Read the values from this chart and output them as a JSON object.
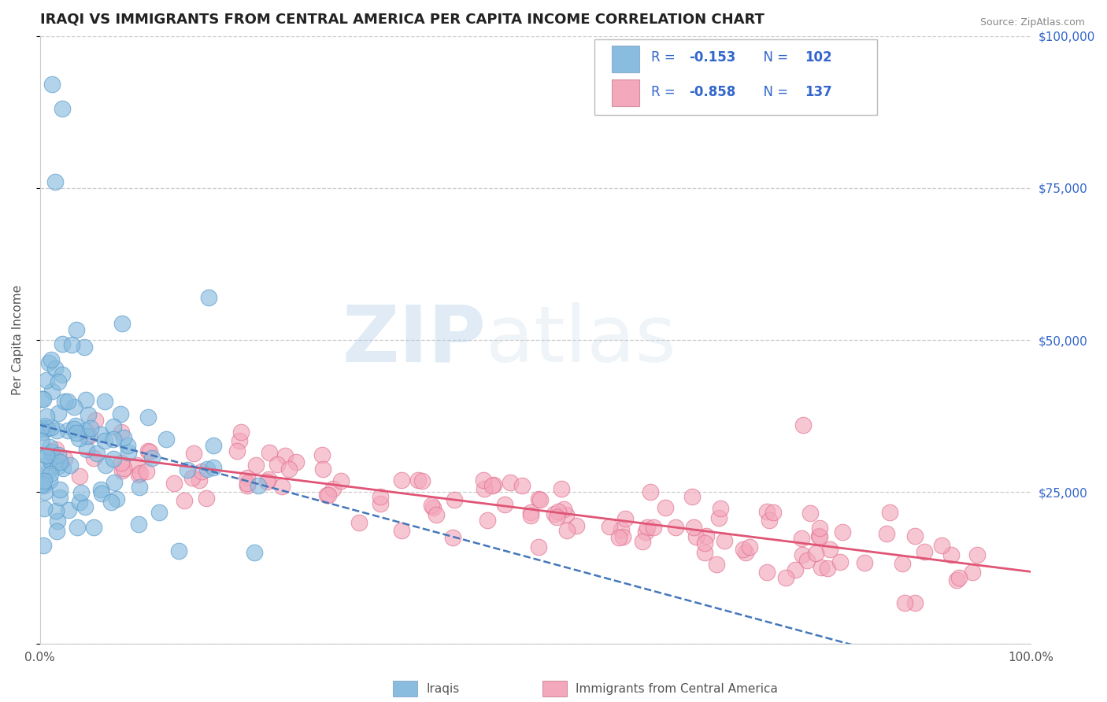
{
  "title": "IRAQI VS IMMIGRANTS FROM CENTRAL AMERICA PER CAPITA INCOME CORRELATION CHART",
  "source": "Source: ZipAtlas.com",
  "ylabel": "Per Capita Income",
  "xlim": [
    0.0,
    1.0
  ],
  "ylim": [
    0,
    100000
  ],
  "yticks": [
    0,
    25000,
    50000,
    75000,
    100000
  ],
  "ytick_labels_right": [
    "",
    "$25,000",
    "$50,000",
    "$75,000",
    "$100,000"
  ],
  "xticks": [
    0.0,
    1.0
  ],
  "xtick_labels": [
    "0.0%",
    "100.0%"
  ],
  "blue_R": -0.153,
  "blue_N": 102,
  "pink_R": -0.858,
  "pink_N": 137,
  "blue_color": "#89bcde",
  "pink_color": "#f4a8bc",
  "blue_edge_color": "#5599cc",
  "pink_edge_color": "#e07090",
  "blue_line_color": "#4477bb",
  "pink_line_color": "#e05575",
  "background_color": "#ffffff",
  "grid_color": "#cccccc",
  "watermark_zip": "ZIP",
  "watermark_atlas": "atlas",
  "legend_label_blue": "Iraqis",
  "legend_label_pink": "Immigrants from Central America",
  "title_fontsize": 13,
  "axis_label_fontsize": 11,
  "tick_fontsize": 11,
  "legend_text_color": "#3366cc",
  "blue_seed": 42,
  "pink_seed": 99
}
